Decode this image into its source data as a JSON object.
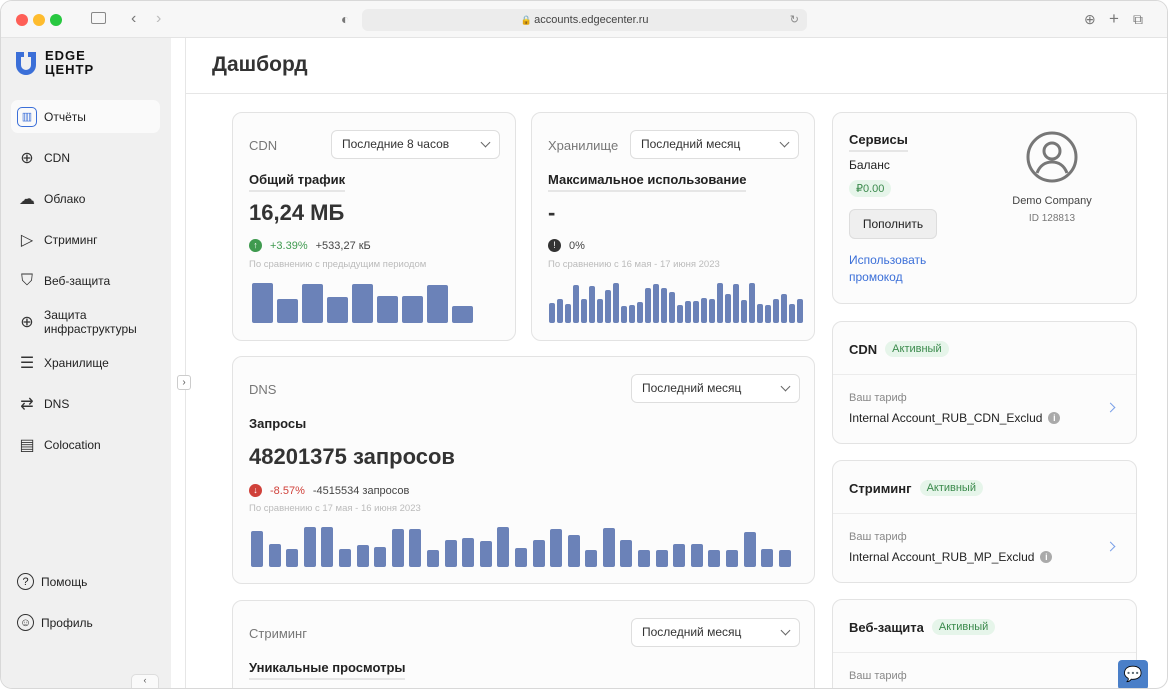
{
  "browser": {
    "url": "accounts.edgecenter.ru"
  },
  "logo": {
    "line1": "EDGE",
    "line2": "ЦЕНТР"
  },
  "sidebar": {
    "items": [
      {
        "label": "Отчёты",
        "icon": "chart-icon"
      },
      {
        "label": "CDN",
        "icon": "globe-icon"
      },
      {
        "label": "Облако",
        "icon": "cloud-icon"
      },
      {
        "label": "Стриминг",
        "icon": "play-icon"
      },
      {
        "label": "Веб-защита",
        "icon": "shield-icon"
      },
      {
        "label": "Защита инфраструктуры",
        "icon": "globe-shield-icon"
      },
      {
        "label": "Хранилище",
        "icon": "database-icon"
      },
      {
        "label": "DNS",
        "icon": "swap-icon"
      },
      {
        "label": "Colocation",
        "icon": "server-icon"
      }
    ],
    "bottom": [
      {
        "label": "Помощь",
        "icon": "help-icon"
      },
      {
        "label": "Профиль",
        "icon": "user-icon"
      }
    ]
  },
  "header": {
    "title": "Дашборд"
  },
  "cdn": {
    "title": "CDN",
    "period": "Последние 8 часов",
    "metric": "Общий трафик",
    "value": "16,24 МБ",
    "change_pct": "+3.39%",
    "change_abs": "+533,27 кБ",
    "compare": "По сравнению с предыдущим периодом",
    "bars": [
      38,
      23,
      37,
      25,
      37,
      26,
      26,
      36,
      16
    ]
  },
  "storage": {
    "title": "Хранилище",
    "period": "Последний месяц",
    "metric": "Максимальное использование",
    "value": "-",
    "change_pct": "0%",
    "compare": "По сравнению с 16 мая - 17 июня 2023",
    "bars": [
      19,
      23,
      18,
      36,
      23,
      35,
      23,
      31,
      38,
      16,
      17,
      20,
      33,
      37,
      33,
      29,
      17,
      21,
      21,
      24,
      23,
      38,
      28,
      37,
      22,
      38,
      18,
      17,
      23,
      28,
      18,
      23
    ]
  },
  "dns": {
    "title": "DNS",
    "period": "Последний месяц",
    "metric": "Запросы",
    "value": "48201375 запросов",
    "change_pct": "-8.57%",
    "change_abs": "-4515534 запросов",
    "compare": "По сравнению с 17 мая - 16 июня 2023",
    "bars": [
      35,
      22,
      18,
      39,
      39,
      18,
      21,
      20,
      37,
      37,
      17,
      26,
      28,
      25,
      39,
      19,
      26,
      37,
      31,
      17,
      38,
      26,
      17,
      17,
      22,
      22,
      17,
      17,
      34,
      18,
      17
    ]
  },
  "streaming": {
    "title": "Стриминг",
    "period": "Последний месяц",
    "metric": "Уникальные просмотры"
  },
  "services": {
    "title": "Сервисы",
    "balance_label": "Баланс",
    "balance": "₽0.00",
    "topup": "Пополнить",
    "promo": "Использовать промокод",
    "company": "Demo Company",
    "id": "ID 128813"
  },
  "service_cards": [
    {
      "name": "CDN",
      "status": "Активный",
      "tariff_label": "Ваш тариф",
      "tariff": "Internal Account_RUB_CDN_Exclud"
    },
    {
      "name": "Стриминг",
      "status": "Активный",
      "tariff_label": "Ваш тариф",
      "tariff": "Internal Account_RUB_MP_Exclud"
    },
    {
      "name": "Веб-защита",
      "status": "Активный",
      "tariff_label": "Ваш тариф"
    }
  ],
  "colors": {
    "accent": "#3b6fd8",
    "bar": "#6b82b8",
    "positive": "#3f9a4f",
    "negative": "#d0413a",
    "chat": "#4a7fc8"
  }
}
